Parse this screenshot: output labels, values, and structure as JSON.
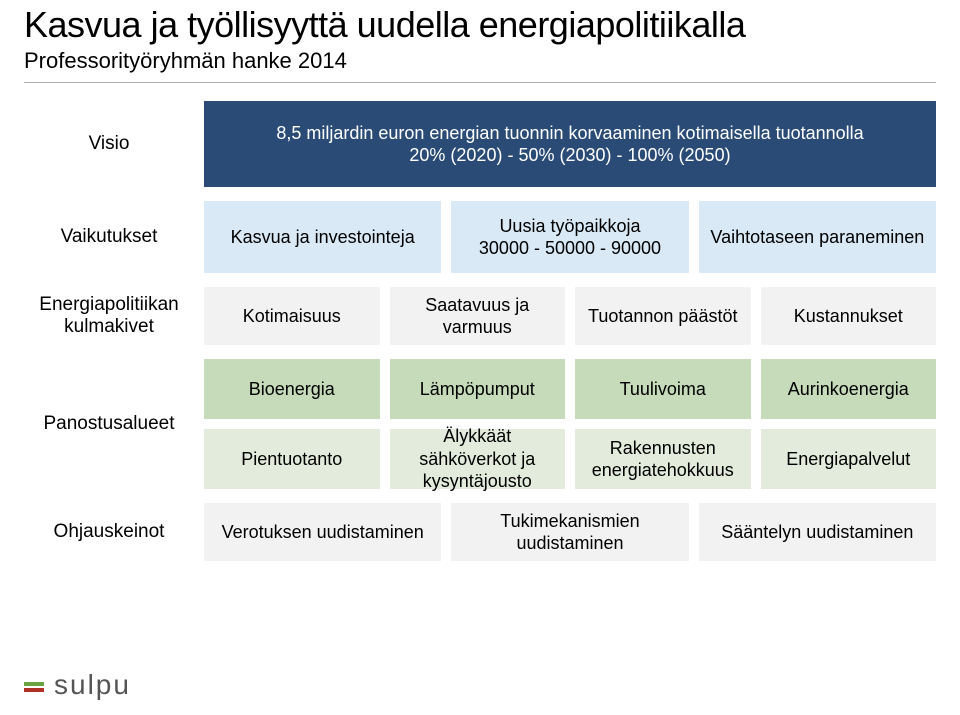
{
  "colors": {
    "visio": "#2a4b75",
    "vaikutukset": "#d9e9f5",
    "kulmakivet": "#f2f2f2",
    "panostus1": "#c6dbb9",
    "panostus2": "#e3ecdc",
    "ohjaus": "#f2f2f2",
    "visio_text": "#ffffff",
    "logo_green": "#6aa343",
    "logo_red": "#b03028"
  },
  "header": {
    "title": "Kasvua ja työllisyyttä uudella energiapolitiikalla",
    "subtitle": "Professorityöryhmän hanke 2014"
  },
  "rows": {
    "visio": {
      "label": "Visio",
      "box": "8,5 miljardin euron energian tuonnin korvaaminen kotimaisella tuotannolla\n20% (2020) - 50% (2030) - 100% (2050)"
    },
    "vaikutukset": {
      "label": "Vaikutukset",
      "boxes": [
        "Kasvua ja investointeja",
        "Uusia työpaikkoja\n30000 - 50000 - 90000",
        "Vaihtotaseen paraneminen"
      ]
    },
    "kulmakivet": {
      "label": "Energiapolitiikan kulmakivet",
      "boxes": [
        "Kotimaisuus",
        "Saatavuus ja varmuus",
        "Tuotannon päästöt",
        "Kustannukset"
      ]
    },
    "panostus": {
      "label": "Panostusalueet",
      "row1": [
        "Bioenergia",
        "Lämpöpumput",
        "Tuulivoima",
        "Aurinkoenergia"
      ],
      "row2": [
        "Pientuotanto",
        "Älykkäät sähköverkot ja kysyntäjousto",
        "Rakennusten energiatehokkuus",
        "Energiapalvelut"
      ]
    },
    "ohjaus": {
      "label": "Ohjauskeinot",
      "boxes": [
        "Verotuksen uudistaminen",
        "Tukimekanismien uudistaminen",
        "Sääntelyn uudistaminen"
      ]
    }
  },
  "logo": {
    "text": "sulpu"
  }
}
